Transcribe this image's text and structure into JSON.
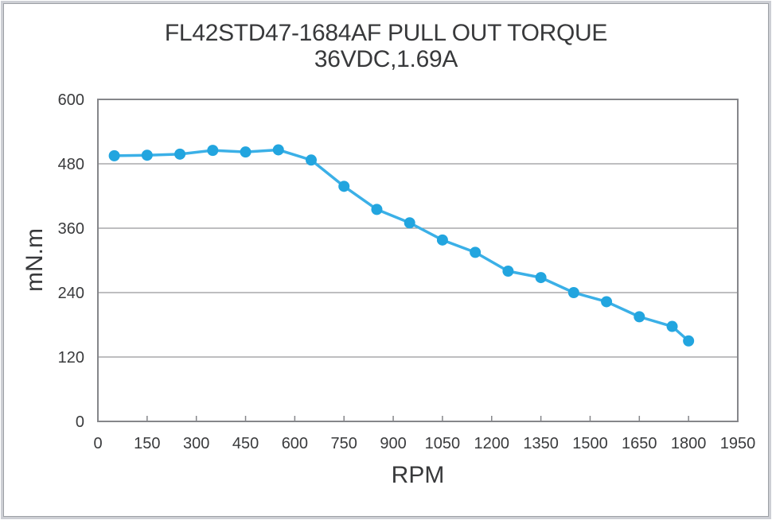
{
  "window": {
    "background": "#ffffff",
    "frame_outer_color": "#cdcfd4",
    "frame_inner_color": "#9da0a5"
  },
  "chart_data": {
    "type": "line",
    "title": "FL42STD47-1684AF PULL OUT TORQUE",
    "subtitle": "36VDC,1.69A",
    "xlabel": "RPM",
    "ylabel": "mN.m",
    "x": [
      50,
      150,
      250,
      350,
      450,
      550,
      650,
      750,
      850,
      950,
      1050,
      1150,
      1250,
      1350,
      1450,
      1550,
      1650,
      1750,
      1800
    ],
    "y": [
      495,
      496,
      498,
      505,
      502,
      506,
      487,
      438,
      395,
      370,
      338,
      315,
      280,
      268,
      240,
      223,
      195,
      177,
      150
    ],
    "xlim": [
      0,
      1950
    ],
    "ylim": [
      0,
      600
    ],
    "x_ticks": [
      0,
      150,
      300,
      450,
      600,
      750,
      900,
      1050,
      1200,
      1350,
      1500,
      1650,
      1800,
      1950
    ],
    "y_ticks": [
      0,
      120,
      240,
      360,
      480,
      600
    ],
    "grid": "horizontal",
    "legend": "none",
    "line_color": "#3bb0e7",
    "marker_color": "#22a5df",
    "grid_color": "#96989b",
    "axis_color": "#85868a",
    "text_color": "#3a3b3d"
  }
}
